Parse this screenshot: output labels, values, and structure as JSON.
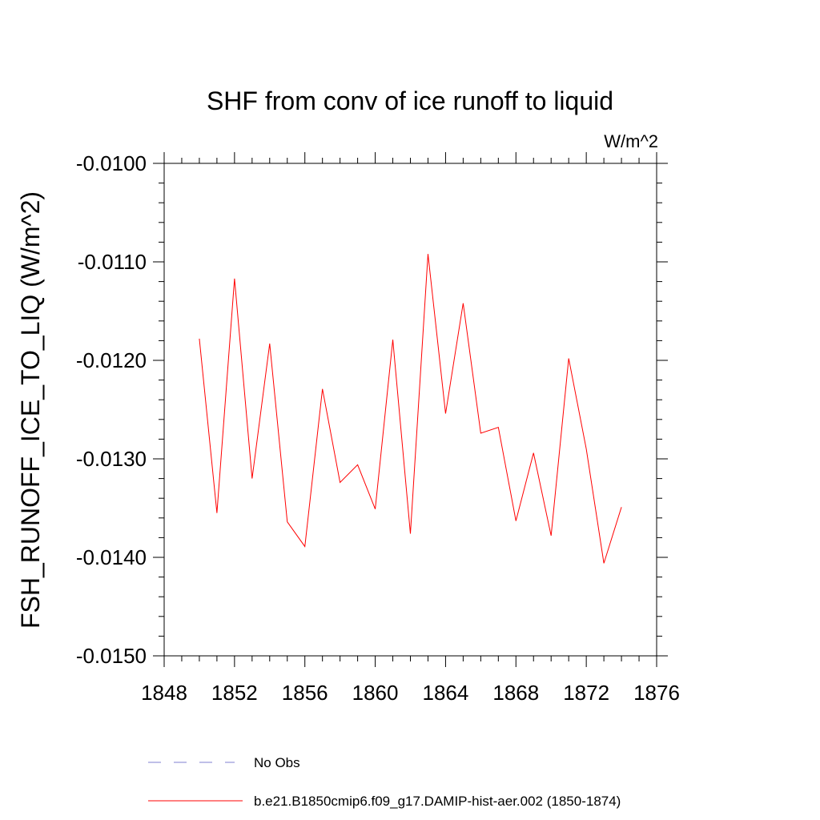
{
  "chart_data": {
    "type": "line",
    "title": "SHF from conv of ice runoff to liquid",
    "units": "W/m^2",
    "ylabel": "FSH_RUNOFF_ICE_TO_LIQ  (W/m^2)",
    "xlabel": "",
    "xlim": [
      1848,
      1876
    ],
    "ylim": [
      -0.015,
      -0.01
    ],
    "x_ticks": [
      1848,
      1852,
      1856,
      1860,
      1864,
      1868,
      1872,
      1876
    ],
    "x_tick_labels": [
      "1848",
      "1852",
      "1856",
      "1860",
      "1864",
      "1868",
      "1872",
      "1876"
    ],
    "y_ticks": [
      -0.01,
      -0.011,
      -0.012,
      -0.013,
      -0.014,
      -0.015
    ],
    "y_tick_labels": [
      "-0.0100",
      "-0.0110",
      "-0.0120",
      "-0.0130",
      "-0.0140",
      "-0.0150"
    ],
    "grid": false,
    "legend_position": "bottom",
    "series": [
      {
        "name": "b.e21.B1850cmip6.f09_g17.DAMIP-hist-aer.002 (1850-1874)",
        "color": "#ff0000",
        "dash": "solid",
        "x": [
          1850,
          1851,
          1852,
          1853,
          1854,
          1855,
          1856,
          1857,
          1858,
          1859,
          1860,
          1861,
          1862,
          1863,
          1864,
          1865,
          1866,
          1867,
          1868,
          1869,
          1870,
          1871,
          1872,
          1873,
          1874
        ],
        "values": [
          -0.01178,
          -0.01355,
          -0.01117,
          -0.0132,
          -0.01183,
          -0.01364,
          -0.01389,
          -0.01229,
          -0.01324,
          -0.01306,
          -0.01351,
          -0.01179,
          -0.01376,
          -0.01092,
          -0.01254,
          -0.01142,
          -0.01274,
          -0.01268,
          -0.01363,
          -0.01294,
          -0.01378,
          -0.01198,
          -0.0129,
          -0.01406,
          -0.01349
        ]
      }
    ],
    "legend": [
      {
        "label": "No Obs",
        "color": "#7f7fd0",
        "dash": "dashed"
      },
      {
        "label": "b.e21.B1850cmip6.f09_g17.DAMIP-hist-aer.002 (1850-1874)",
        "color": "#ff0000",
        "dash": "solid"
      }
    ]
  }
}
